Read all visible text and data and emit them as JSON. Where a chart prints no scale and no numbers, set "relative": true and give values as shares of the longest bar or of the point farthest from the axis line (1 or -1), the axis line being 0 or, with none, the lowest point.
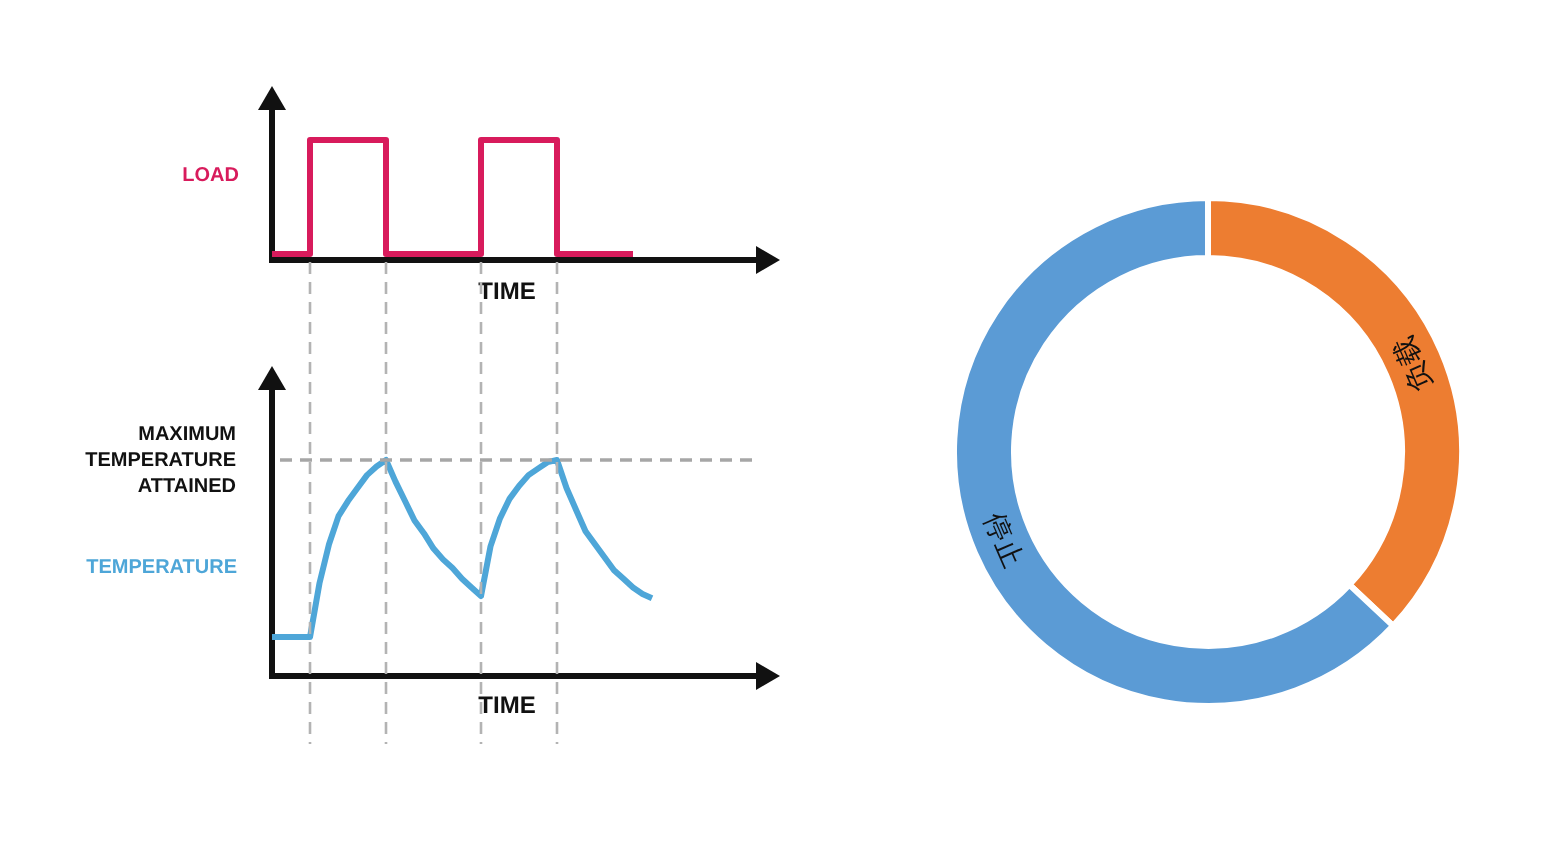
{
  "chart_data": [
    {
      "type": "step",
      "ylabel": "LOAD",
      "xlabel": "TIME",
      "relative": true,
      "categories": [
        null,
        null,
        null,
        null,
        null,
        null,
        null,
        null,
        null,
        null,
        null,
        null,
        null,
        null,
        null,
        null,
        null,
        null,
        null,
        null,
        null,
        null,
        null,
        null,
        null,
        null,
        null,
        null,
        null,
        null,
        null,
        null,
        null,
        null,
        null,
        null,
        null,
        null,
        null
      ],
      "series": [
        {
          "color": "#d81b5c",
          "values": [
            0.05,
            0.05,
            0.05,
            0.05,
            1,
            1,
            1,
            1,
            1,
            1,
            1,
            1,
            0.05,
            0.05,
            0.05,
            0.05,
            0.05,
            0.05,
            0.05,
            0.05,
            0.05,
            0.05,
            1,
            1,
            1,
            1,
            1,
            1,
            1,
            1,
            0.05,
            0.05,
            0.05,
            0.05,
            0.05,
            0.05,
            0.05,
            0.05,
            0.05
          ]
        }
      ]
    },
    {
      "type": "line",
      "ylabel": "TEMPERATURE",
      "xlabel": "TIME",
      "relative": true,
      "grid": "x",
      "categories": [
        null,
        null,
        null,
        null,
        null,
        null,
        null,
        null,
        null,
        null,
        null,
        null,
        null,
        null,
        null,
        null,
        null,
        null,
        null,
        null,
        null,
        null,
        null,
        null,
        null,
        null,
        null,
        null,
        null,
        null,
        null,
        null,
        null,
        null,
        null,
        null,
        null,
        null,
        null,
        null,
        null
      ],
      "series": [
        {
          "color": "#4ea6d8",
          "values": [
            0.18,
            0.18,
            0.18,
            0.18,
            0.18,
            0.43,
            0.61,
            0.74,
            0.81,
            0.87,
            0.93,
            0.97,
            1,
            0.9,
            0.81,
            0.72,
            0.66,
            0.59,
            0.54,
            0.5,
            0.45,
            0.41,
            0.37,
            0.6,
            0.73,
            0.82,
            0.88,
            0.93,
            0.96,
            0.99,
            1,
            0.87,
            0.77,
            0.67,
            0.61,
            0.55,
            0.49,
            0.45,
            0.41,
            0.38,
            0.36
          ]
        }
      ],
      "ref_lines": [
        {
          "axis": "y",
          "value": 1,
          "label": "MAXIMUM TEMPERATURE ATTAINED",
          "color": "#a6a6a6",
          "line_style": "dashed"
        }
      ]
    },
    {
      "type": "donut",
      "categories": [
        "负载",
        "停止"
      ],
      "values": [
        37,
        63
      ],
      "colors": [
        "#ed7d31",
        "#5b9bd5"
      ]
    }
  ]
}
